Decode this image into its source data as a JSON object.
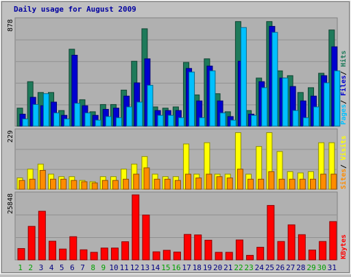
{
  "chart_data": {
    "type": "bar",
    "title": "Daily usage for August 2009",
    "categories": [
      "1",
      "2",
      "3",
      "4",
      "5",
      "6",
      "7",
      "8",
      "9",
      "10",
      "11",
      "12",
      "13",
      "14",
      "15",
      "16",
      "17",
      "18",
      "19",
      "20",
      "21",
      "22",
      "23",
      "24",
      "25",
      "26",
      "27",
      "28",
      "29",
      "30",
      "31"
    ],
    "weekend_days": [
      "1",
      "2",
      "8",
      "9",
      "15",
      "16",
      "22",
      "23",
      "29",
      "30"
    ],
    "colors": {
      "title": "#0000a0",
      "background": "#c0c0c0",
      "plot_background": "#b0b0b0",
      "hits": "#1e7a5a",
      "files": "#0000d0",
      "pages": "#00c0ff",
      "visits": "#ffff00",
      "sites": "#ff8c00",
      "kbytes": "#ff0000",
      "day_label": "#000080",
      "weekend_label": "#00a000"
    },
    "panels": [
      {
        "id": "requests",
        "max_label": "878",
        "ymax": 878,
        "legend": [
          {
            "label": "Pages",
            "color": "#00c0ff"
          },
          {
            "label": "/",
            "color": "#000000"
          },
          {
            "label": "Files",
            "color": "#0000d0"
          },
          {
            "label": "/",
            "color": "#000000"
          },
          {
            "label": "Hits",
            "color": "#1e7a5a"
          }
        ],
        "series": [
          {
            "name": "Hits",
            "values": [
              150,
              370,
              280,
              280,
              130,
              640,
              220,
              120,
              180,
              180,
              300,
              540,
              810,
              160,
              150,
              160,
              530,
              260,
              560,
              270,
              120,
              870,
              130,
              400,
              870,
              460,
              420,
              280,
              320,
              440,
              800
            ]
          },
          {
            "name": "Files",
            "values": [
              100,
              240,
              170,
              200,
              90,
              590,
              170,
              90,
              140,
              150,
              250,
              360,
              560,
              130,
              130,
              130,
              480,
              210,
              500,
              210,
              80,
              540,
              100,
              370,
              830,
              400,
              330,
              210,
              250,
              420,
              660
            ]
          },
          {
            "name": "Pages",
            "values": [
              60,
              180,
              270,
              110,
              60,
              190,
              110,
              50,
              80,
              70,
              160,
              200,
              340,
              90,
              90,
              70,
              450,
              70,
              460,
              110,
              50,
              820,
              90,
              320,
              780,
              400,
              130,
              70,
              160,
              360,
              460
            ]
          }
        ]
      },
      {
        "id": "visits",
        "max_label": "229",
        "ymax": 229,
        "legend": [
          {
            "label": "Sites",
            "color": "#ff8c00"
          },
          {
            "label": "/",
            "color": "#000000"
          },
          {
            "label": "Visits",
            "color": "#ffff00"
          }
        ],
        "series": [
          {
            "name": "Visits",
            "values": [
              45,
              80,
              100,
              60,
              50,
              50,
              35,
              30,
              50,
              50,
              80,
              100,
              130,
              60,
              50,
              50,
              180,
              60,
              185,
              60,
              60,
              225,
              60,
              170,
              225,
              150,
              70,
              65,
              70,
              185,
              185
            ]
          },
          {
            "name": "Sites",
            "values": [
              35,
              40,
              75,
              40,
              40,
              35,
              30,
              25,
              35,
              35,
              40,
              60,
              85,
              40,
              40,
              35,
              60,
              45,
              60,
              50,
              45,
              80,
              40,
              40,
              70,
              40,
              40,
              40,
              40,
              60,
              60
            ]
          }
        ]
      },
      {
        "id": "kbytes",
        "max_label": "25848",
        "ymax": 25848,
        "legend": [
          {
            "label": "KBytes",
            "color": "#ff0000"
          }
        ],
        "series": [
          {
            "name": "KBytes",
            "values": [
              4500,
              13300,
              19300,
              7400,
              4300,
              9200,
              4000,
              3000,
              4700,
              4700,
              7200,
              25800,
              17800,
              3200,
              3800,
              3100,
              10100,
              9900,
              7800,
              3000,
              3000,
              7900,
              1800,
              5000,
              21600,
              7300,
              13900,
              10000,
              3900,
              7300,
              15200
            ]
          }
        ]
      }
    ]
  }
}
